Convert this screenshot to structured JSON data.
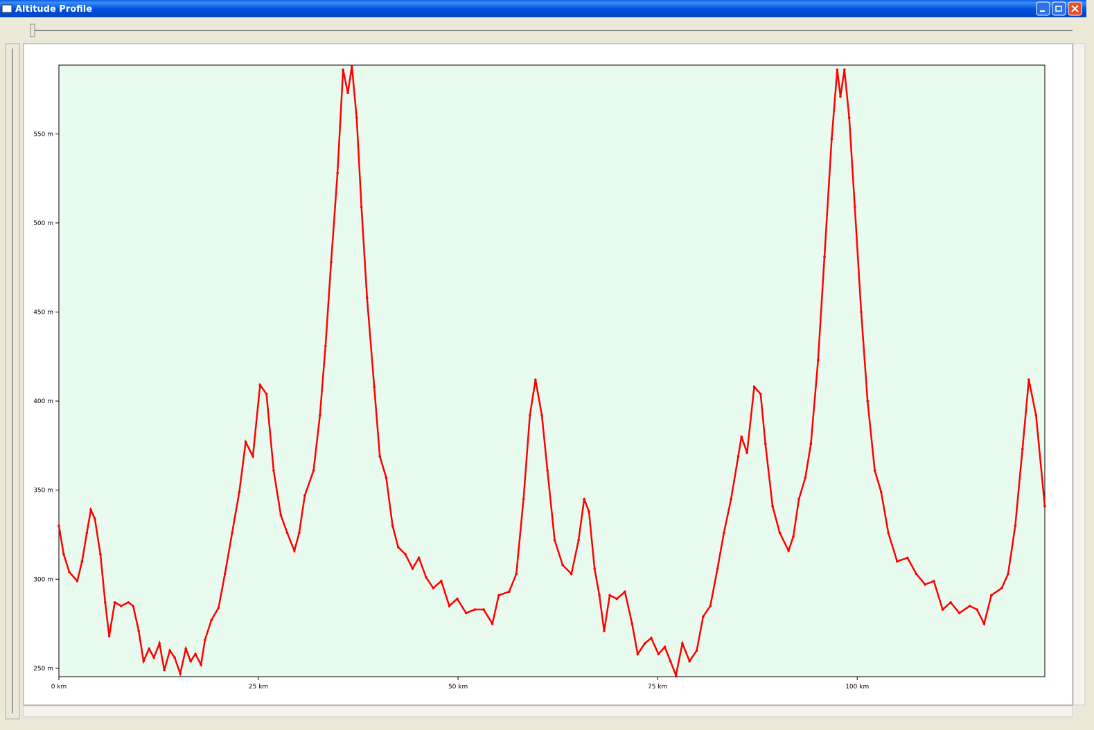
{
  "window": {
    "title": "Altitude Profile"
  },
  "chart_data": {
    "type": "line",
    "x": [
      0,
      0.6,
      1.3,
      2.3,
      2.9,
      3.5,
      4.0,
      4.5,
      5.2,
      5.8,
      6.3,
      7.0,
      7.8,
      8.7,
      9.3,
      10.0,
      10.6,
      11.3,
      11.9,
      12.6,
      13.2,
      13.9,
      14.5,
      15.2,
      15.9,
      16.5,
      17.1,
      17.8,
      18.3,
      19.1,
      20.0,
      20.8,
      21.7,
      22.6,
      23.4,
      24.3,
      25.2,
      26.0,
      26.9,
      27.8,
      28.6,
      29.5,
      30.1,
      30.8,
      31.9,
      32.7,
      33.4,
      34.1,
      34.9,
      35.6,
      36.2,
      36.7,
      37.3,
      37.9,
      38.6,
      39.5,
      40.2,
      41.0,
      41.8,
      42.5,
      43.4,
      44.3,
      45.1,
      46.0,
      46.9,
      47.9,
      48.9,
      49.9,
      51.0,
      52.1,
      53.2,
      54.3,
      55.1,
      56.4,
      57.3,
      58.2,
      59.0,
      59.7,
      60.5,
      61.2,
      62.1,
      63.1,
      64.2,
      65.1,
      65.8,
      66.4,
      67.1,
      67.7,
      68.3,
      69.0,
      69.9,
      70.9,
      71.8,
      72.5,
      73.4,
      74.2,
      75.1,
      75.9,
      76.6,
      77.3,
      78.1,
      79.0,
      79.9,
      80.7,
      81.6,
      82.5,
      83.3,
      84.2,
      85.1,
      85.5,
      86.2,
      87.1,
      87.9,
      88.5,
      89.4,
      90.3,
      91.4,
      92.0,
      92.7,
      93.5,
      94.2,
      95.1,
      95.9,
      96.8,
      97.5,
      97.9,
      98.4,
      99.0,
      99.7,
      100.5,
      101.3,
      102.2,
      103.0,
      103.9,
      105.0,
      106.3,
      107.4,
      108.5,
      109.6,
      110.7,
      111.7,
      112.8,
      114.1,
      115.0,
      115.9,
      116.8,
      118.1,
      118.9,
      119.8,
      120.7,
      121.5,
      122.4,
      123.5
    ],
    "series": [
      {
        "color": "#ff0000",
        "values": [
          330,
          314,
          304,
          299,
          310,
          326,
          339,
          334,
          314,
          287,
          268,
          287,
          285,
          287,
          285,
          271,
          254,
          261,
          256,
          264,
          249,
          260,
          256,
          247,
          261,
          254,
          258,
          252,
          266,
          277,
          284,
          303,
          326,
          349,
          377,
          369,
          409,
          404,
          361,
          336,
          326,
          316,
          326,
          347,
          361,
          392,
          431,
          478,
          528,
          586,
          573,
          588,
          559,
          509,
          458,
          408,
          369,
          357,
          330,
          318,
          314,
          306,
          312,
          301,
          295,
          299,
          285,
          289,
          281,
          283,
          283,
          275,
          291,
          293,
          303,
          345,
          392,
          412,
          392,
          361,
          322,
          308,
          303,
          322,
          345,
          338,
          306,
          291,
          271,
          291,
          289,
          293,
          275,
          258,
          264,
          267,
          258,
          262,
          254,
          246,
          264,
          254,
          260,
          279,
          285,
          306,
          326,
          345,
          369,
          380,
          371,
          408,
          404,
          376,
          341,
          326,
          316,
          324,
          345,
          357,
          376,
          423,
          481,
          547,
          586,
          571,
          586,
          559,
          509,
          450,
          400,
          361,
          349,
          326,
          310,
          312,
          303,
          297,
          299,
          283,
          287,
          281,
          285,
          283,
          275,
          291,
          295,
          303,
          330,
          373,
          412,
          392,
          341
        ]
      }
    ],
    "xlim": [
      0,
      123.5
    ],
    "ylim": [
      245.3,
      588.6
    ],
    "xticks": [
      {
        "value": 0,
        "label": "0 km"
      },
      {
        "value": 25,
        "label": "25 km"
      },
      {
        "value": 50,
        "label": "50 km"
      },
      {
        "value": 75,
        "label": "75 km"
      },
      {
        "value": 100,
        "label": "100 km"
      }
    ],
    "yticks": [
      {
        "value": 250,
        "label": "250 m"
      },
      {
        "value": 300,
        "label": "300 m"
      },
      {
        "value": 350,
        "label": "350 m"
      },
      {
        "value": 400,
        "label": "400 m"
      },
      {
        "value": 450,
        "label": "450 m"
      },
      {
        "value": 500,
        "label": "500 m"
      },
      {
        "value": 550,
        "label": "550 m"
      }
    ]
  }
}
